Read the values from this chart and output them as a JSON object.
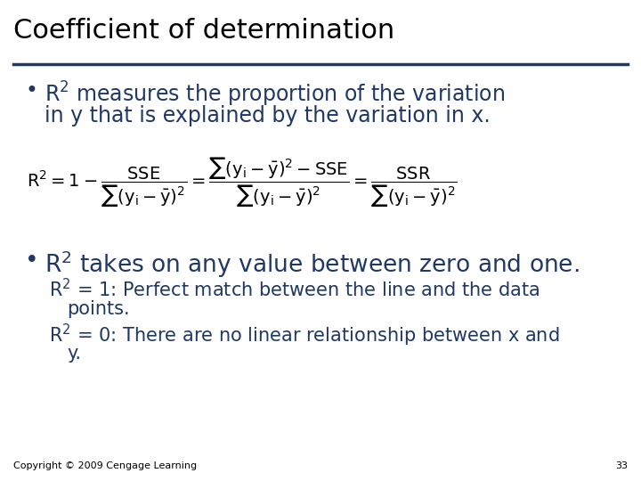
{
  "title": "Coefficient of determination",
  "title_color": "#000000",
  "title_fontsize": 22,
  "underline_color": "#1F3864",
  "bg_color": "#FFFFFF",
  "text_color": "#1F3864",
  "footer": "Copyright © 2009 Cengage Learning",
  "page_number": "33",
  "footer_fontsize": 8,
  "bullet_fontsize": 17,
  "bullet2_fontsize": 19,
  "sub_fontsize": 15,
  "formula_fontsize": 13
}
